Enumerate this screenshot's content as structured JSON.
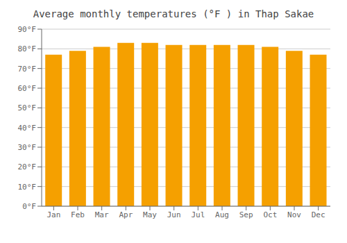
{
  "chart_data": {
    "type": "bar",
    "title": "Average monthly temperatures (°F ) in Thap Sakae",
    "categories": [
      "Jan",
      "Feb",
      "Mar",
      "Apr",
      "May",
      "Jun",
      "Jul",
      "Aug",
      "Sep",
      "Oct",
      "Nov",
      "Dec"
    ],
    "values": [
      77,
      79,
      81,
      83,
      83,
      82,
      82,
      82,
      82,
      81,
      79,
      77
    ],
    "color": "#F5A000",
    "ylim": [
      0,
      90
    ],
    "yticks": [
      {
        "value": 0,
        "label": "0°F"
      },
      {
        "value": 10,
        "label": "10°F"
      },
      {
        "value": 20,
        "label": "20°F"
      },
      {
        "value": 30,
        "label": "30°F"
      },
      {
        "value": 40,
        "label": "40°F"
      },
      {
        "value": 50,
        "label": "50°F"
      },
      {
        "value": 60,
        "label": "60°F"
      },
      {
        "value": 70,
        "label": "70°F"
      },
      {
        "value": 80,
        "label": "80°F"
      },
      {
        "value": 90,
        "label": "90°F"
      }
    ],
    "grid": true
  }
}
